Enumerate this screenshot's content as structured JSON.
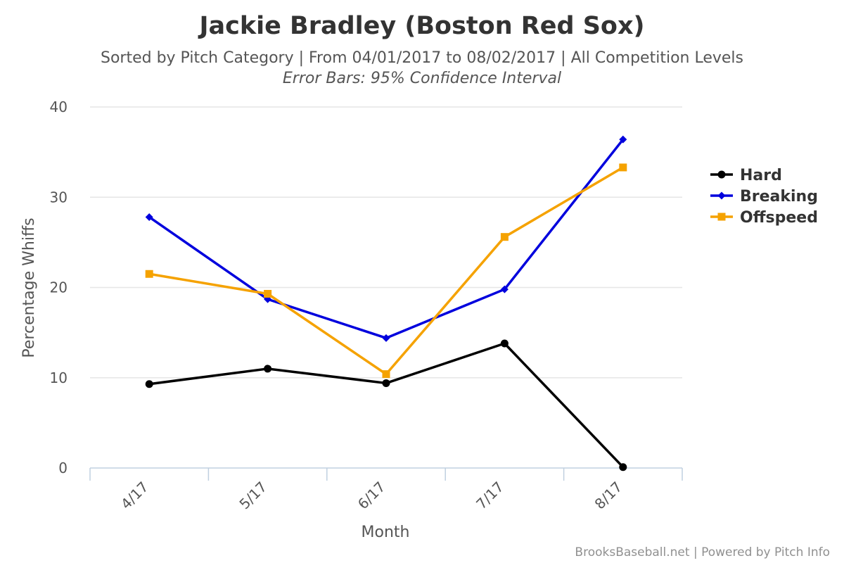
{
  "chart_data": {
    "type": "line",
    "title": "Jackie Bradley (Boston Red Sox)",
    "subtitle": "Sorted by Pitch Category | From 04/01/2017 to 08/02/2017 | All Competition Levels",
    "subtitle2": "Error Bars: 95% Confidence Interval",
    "xlabel": "Month",
    "ylabel": "Percentage Whiffs",
    "categories": [
      "4/17",
      "5/17",
      "6/17",
      "7/17",
      "8/17"
    ],
    "ylim": [
      0,
      40
    ],
    "yticks": [
      "0",
      "10",
      "20",
      "30",
      "40"
    ],
    "grid": true,
    "legend_position": "right",
    "series": [
      {
        "name": "Hard",
        "color": "#000000",
        "marker": "circle",
        "values": [
          9.3,
          11.0,
          9.4,
          13.8,
          0.1
        ]
      },
      {
        "name": "Breaking",
        "color": "#0000dd",
        "marker": "diamond",
        "values": [
          27.8,
          18.7,
          14.4,
          19.8,
          36.4
        ]
      },
      {
        "name": "Offspeed",
        "color": "#f5a200",
        "marker": "square",
        "values": [
          21.5,
          19.3,
          10.4,
          25.6,
          33.3
        ]
      }
    ],
    "credit": "BrooksBaseball.net | Powered by Pitch Info"
  }
}
